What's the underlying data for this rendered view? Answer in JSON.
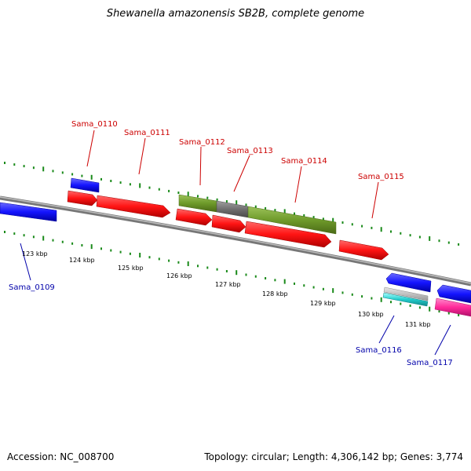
{
  "title": "Shewanella amazonensis SB2B, complete genome",
  "footer": {
    "accession_label": "Accession:",
    "accession": "NC_008700",
    "topology_label": "Topology:",
    "topology": "circular",
    "length_label": "Length:",
    "length": "4,306,142 bp",
    "genes_label": "Genes:",
    "genes": "3,774"
  },
  "colors": {
    "backbone": "#8a8a8a",
    "forward_cds": "#ff1a1a",
    "reverse_cds": "#1a1aff",
    "rna_green": "#6e9a2a",
    "rna_gray": "#707070",
    "cyan_feature": "#22cccc",
    "magenta_feature": "#ff2a9a",
    "tick": "#1a8a1a",
    "label_forward": "#cc0000",
    "label_reverse": "#0000aa"
  },
  "scale_labels": [
    "123 kbp",
    "124 kbp",
    "125 kbp",
    "126 kbp",
    "127 kbp",
    "128 kbp",
    "129 kbp",
    "130 kbp",
    "131 kbp"
  ],
  "gene_labels_top": [
    "Sama_0110",
    "Sama_0111",
    "Sama_0112",
    "Sama_0113",
    "Sama_0114",
    "Sama_0115"
  ],
  "gene_labels_bottom": [
    "Sama_0109",
    "Sama_0116",
    "Sama_0117"
  ]
}
